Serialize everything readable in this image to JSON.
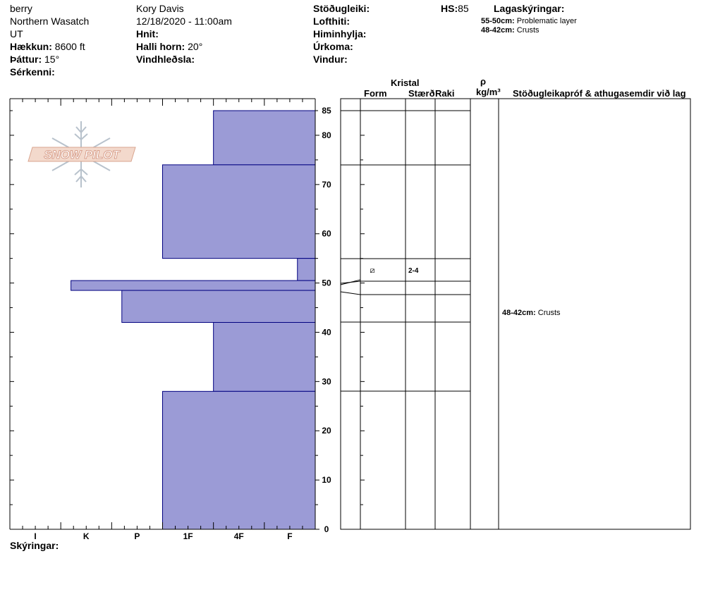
{
  "header": {
    "observer_site": "berry",
    "range": "Northern Wasatch",
    "state": "UT",
    "elevation_label": "Hækkun:",
    "elevation": "8600 ft",
    "aspect_label": "Þáttur:",
    "aspect": "15°",
    "features_label": "Sérkenni:",
    "observer": "Kory Davis",
    "datetime": "12/18/2020 - 11:00am",
    "coords_label": "Hnit:",
    "slope_label": "Halli horn:",
    "slope": "20°",
    "wind_loading_label": "Vindhleðsla:",
    "stability_label": "Stöðugleiki:",
    "air_temp_label": "Lofthiti:",
    "sky_label": "Himinhylja:",
    "precip_label": "Úrkoma:",
    "wind_label": "Vindur:",
    "hs_label": "HS:",
    "hs": "85",
    "legend_title": "Lagaskýringar:",
    "legend_items": [
      {
        "range": "55-50cm:",
        "text": "Problematic layer"
      },
      {
        "range": "48-42cm:",
        "text": "Crusts"
      }
    ]
  },
  "columns": {
    "crystal": "Kristal",
    "form": "Form",
    "size": "Stærð",
    "moisture": "Raki",
    "rho": "ρ",
    "density_unit": "kg/m³",
    "comments": "Stöðugleikapróf & athugasemdir við lag"
  },
  "logo_text": "SNOW PILOT",
  "footer_label": "Skýringar:",
  "layer_rows": [
    {
      "top": 55,
      "bottom": 50,
      "form_icon": "faceted-rounded-icon",
      "form_symbol": "⧄",
      "size": "2-4"
    }
  ],
  "comments": [
    {
      "at": 44,
      "range": "48-42cm:",
      "text": "Crusts"
    }
  ],
  "chart_data": {
    "type": "bar",
    "title": "",
    "orientation": "horizontal",
    "xlabel": "",
    "ylabel": "",
    "x_categories": [
      "I",
      "K",
      "P",
      "1F",
      "4F",
      "F"
    ],
    "ylim": [
      0,
      85
    ],
    "y_ticks": [
      0,
      10,
      20,
      30,
      40,
      50,
      60,
      70,
      80,
      85
    ],
    "hardness_scale_note": "hardness index: F=1 (right) … I=6 (left)",
    "layers": [
      {
        "top": 85,
        "bottom": 74,
        "hardness": "4F",
        "index": 2
      },
      {
        "top": 74,
        "bottom": 55,
        "hardness": "1F",
        "index": 3
      },
      {
        "top": 55,
        "bottom": 50.5,
        "hardness": "F",
        "index": 0.35
      },
      {
        "top": 50.5,
        "bottom": 48.5,
        "hardness": "K",
        "index": 4.8
      },
      {
        "top": 48.5,
        "bottom": 42,
        "hardness": "P",
        "index": 3.8
      },
      {
        "top": 42,
        "bottom": 28,
        "hardness": "4F",
        "index": 2
      },
      {
        "top": 28,
        "bottom": 0,
        "hardness": "1F",
        "index": 3
      }
    ],
    "colors": {
      "fill": "#9b9bd6",
      "edge": "#000080"
    }
  }
}
